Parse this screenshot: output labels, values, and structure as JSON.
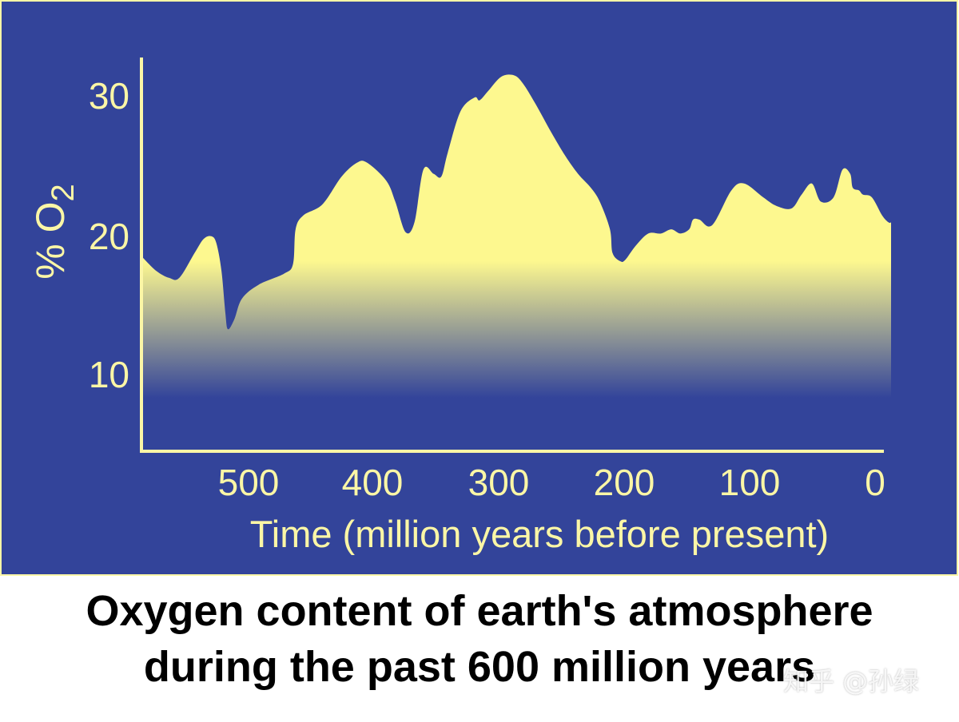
{
  "chart_data": {
    "type": "area",
    "xlabel": "Time (million years before present)",
    "ylabel_main": "% O",
    "ylabel_sub": "2",
    "x_ticks": [
      500,
      400,
      300,
      200,
      100,
      0
    ],
    "y_ticks": [
      10,
      20,
      30
    ],
    "xlim": [
      586,
      0
    ],
    "ylim": [
      4.5,
      33
    ],
    "grid": false,
    "series": [
      {
        "x": [
          586,
          575,
          565,
          557,
          545,
          538,
          532,
          528,
          524,
          521,
          519,
          514,
          508,
          495,
          475,
          468,
          466,
          460,
          445,
          430,
          418,
          410,
          395,
          388,
          380,
          373,
          366,
          358,
          352,
          347,
          337,
          326,
          322,
          315,
          305,
          295,
          288,
          278,
          266,
          255,
          245,
          235,
          228,
          220,
          218,
          212,
          208,
          200,
          190,
          180,
          172,
          165,
          158,
          155,
          150,
          140,
          125,
          115,
          100,
          90,
          78,
          70,
          62,
          55,
          45,
          38,
          32,
          30,
          25,
          22,
          15,
          7,
          2,
          0
        ],
        "y": [
          18.5,
          17.5,
          17.0,
          17.0,
          18.8,
          19.8,
          20.0,
          19.5,
          17.5,
          14.5,
          13.3,
          14.0,
          15.5,
          16.5,
          17.3,
          18.0,
          20.5,
          21.5,
          22.3,
          24.3,
          25.3,
          25.3,
          24.0,
          22.5,
          20.3,
          21.0,
          24.8,
          24.5,
          24.3,
          26.0,
          29.0,
          30.0,
          29.8,
          30.5,
          31.5,
          31.6,
          31.0,
          29.5,
          27.5,
          25.8,
          24.5,
          23.5,
          22.5,
          20.5,
          18.8,
          18.2,
          18.3,
          19.3,
          20.2,
          20.2,
          20.5,
          20.2,
          20.5,
          21.2,
          21.2,
          20.8,
          23.3,
          23.8,
          22.8,
          22.2,
          22.0,
          23.0,
          23.8,
          22.5,
          22.8,
          24.8,
          24.5,
          23.5,
          23.3,
          23.0,
          22.8,
          21.5,
          21.0,
          21.0
        ]
      }
    ]
  },
  "caption": {
    "line1": "Oxygen content of earth's atmosphere",
    "line2": "during the past 600 million years"
  },
  "watermark": "知乎 @孙绿",
  "colors": {
    "background": "#33449a",
    "axis": "#fbf6a6",
    "text": "#fbf6a6",
    "fill_top": "#fdf88f",
    "fill_bottom": "#33449a",
    "caption": "#000000"
  }
}
